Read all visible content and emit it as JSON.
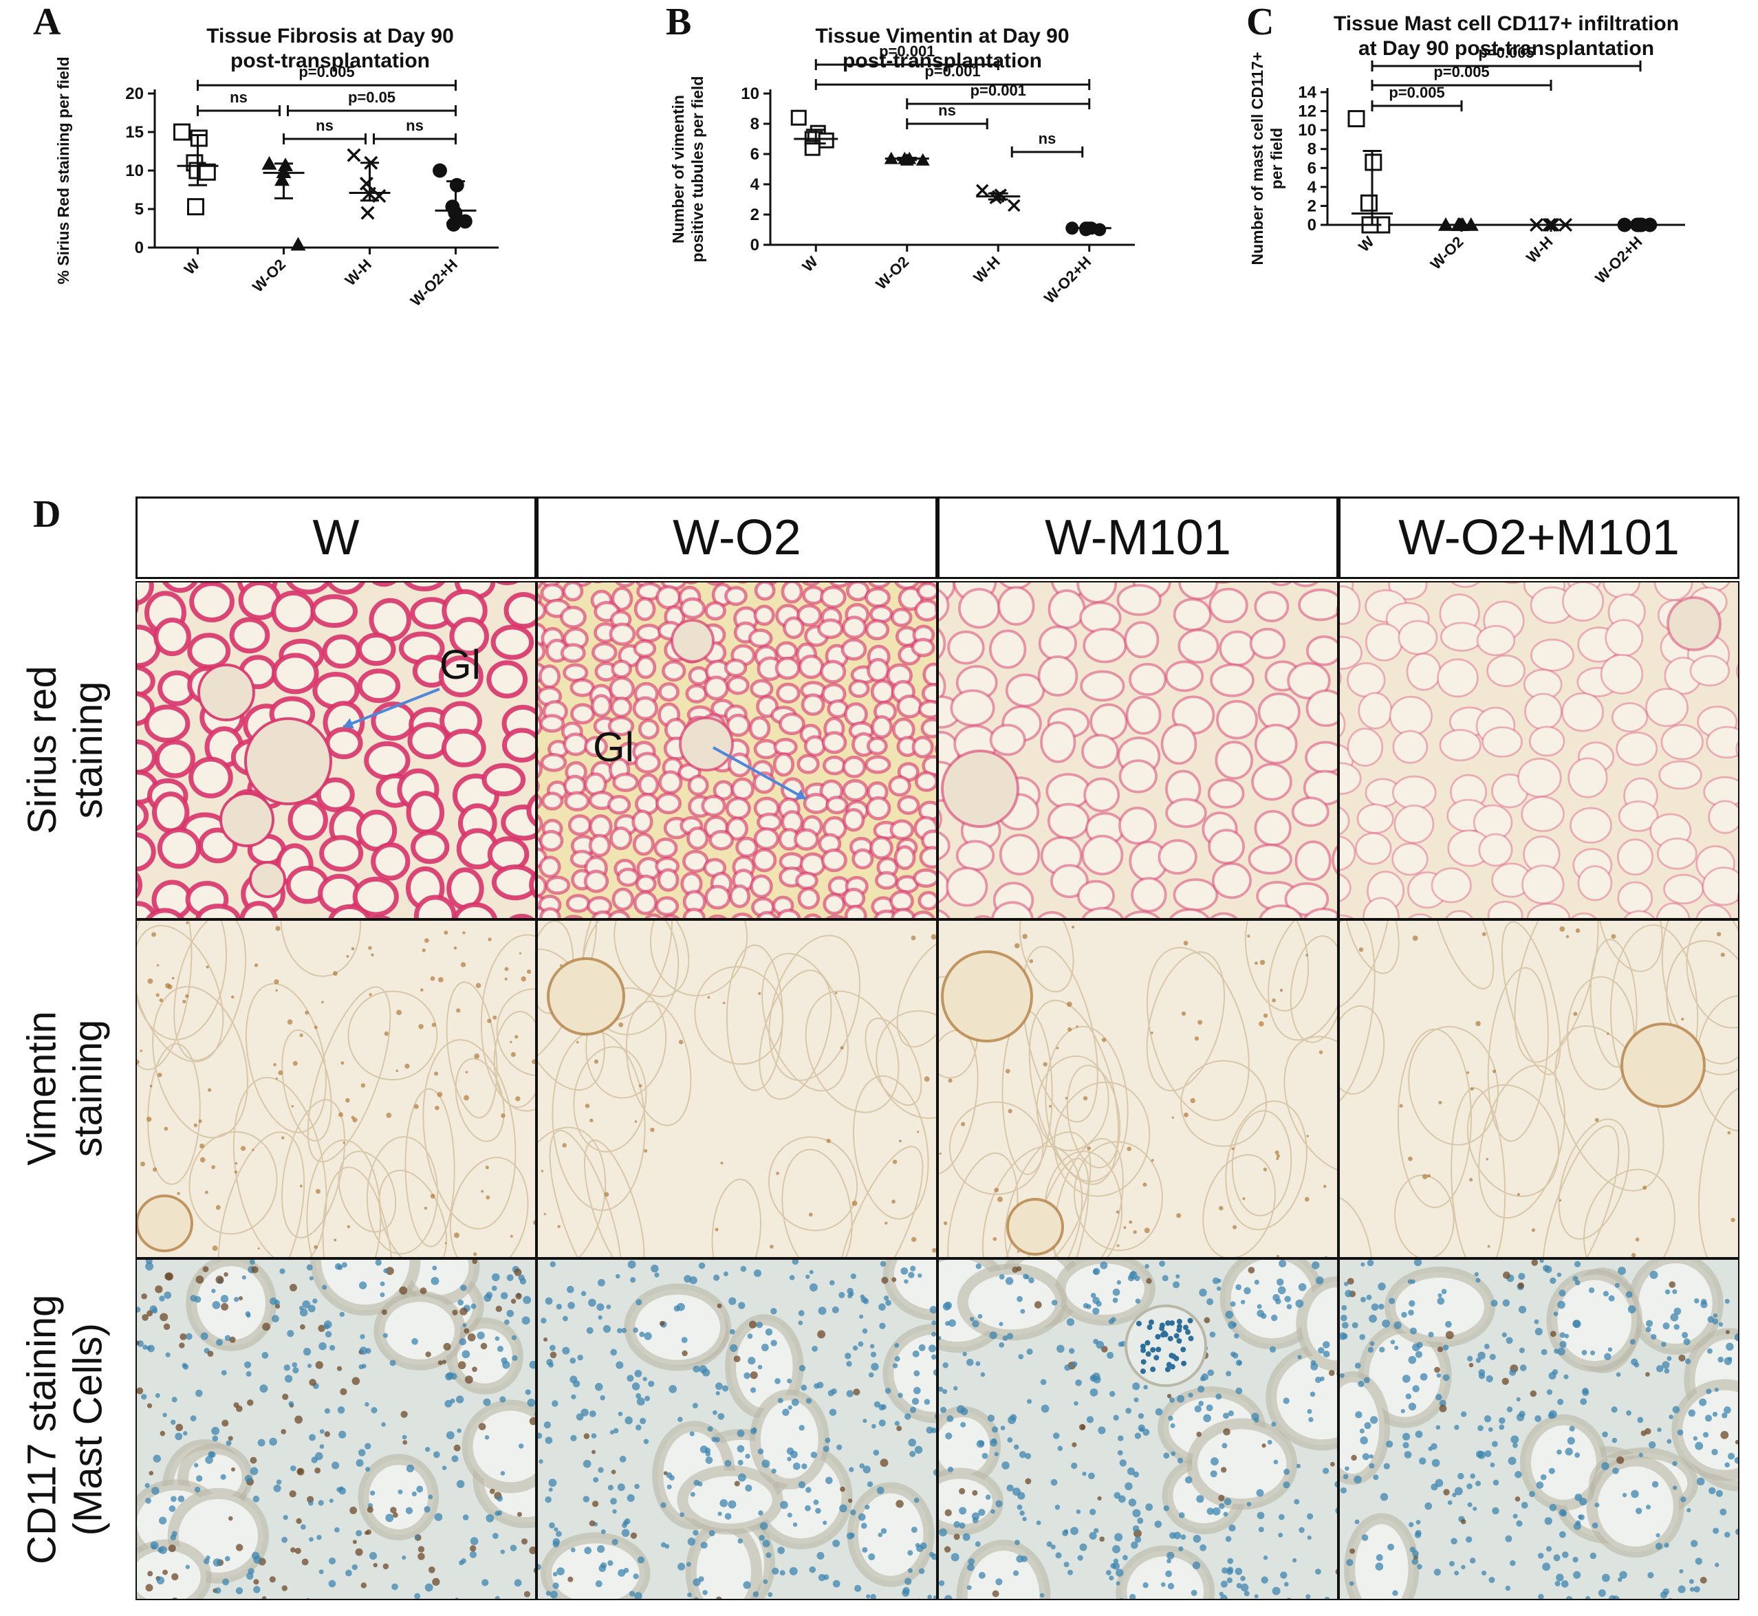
{
  "panels": {
    "a": "A",
    "b": "B",
    "c": "C",
    "d": "D"
  },
  "chart_data": [
    {
      "type": "scatter",
      "title": [
        "Tissue Fibrosis at Day 90",
        "post-transplantation"
      ],
      "xlabel": "",
      "ylabel": "% Sirius Red staining per field",
      "categories": [
        "W",
        "W-O2",
        "W-H",
        "W-O2+H"
      ],
      "ylim": [
        0,
        20
      ],
      "yticks": [
        0,
        5,
        10,
        15,
        20
      ],
      "markers": [
        "square",
        "triangle",
        "cross",
        "circle"
      ],
      "points": [
        [
          15.0,
          14.2,
          11.0,
          10.0,
          9.8,
          5.3
        ],
        [
          10.9,
          10.7,
          9.8,
          8.8,
          0.4
        ],
        [
          12.0,
          11.0,
          8.3,
          7.0,
          6.7,
          4.5
        ],
        [
          10.0,
          8.1,
          5.3,
          4.5,
          3.4,
          3.0
        ]
      ],
      "median": [
        10.6,
        9.7,
        7.1,
        4.8
      ],
      "iqr": [
        [
          8.1,
          14.6
        ],
        [
          6.4,
          10.9
        ],
        [
          6.1,
          11.0
        ],
        [
          3.2,
          8.6
        ]
      ],
      "annotations": [
        {
          "from": "W",
          "to": "W-O2+H",
          "text": "p=0.005"
        },
        {
          "from": "W",
          "to": "W-O2",
          "text": "ns"
        },
        {
          "from": "W-O2",
          "to": "W-O2+H",
          "text": "p=0.05"
        },
        {
          "from": "W-O2",
          "to": "W-H",
          "text": "ns"
        },
        {
          "from": "W-H",
          "to": "W-O2+H",
          "text": "ns"
        }
      ]
    },
    {
      "type": "scatter",
      "title": [
        "Tissue Vimentin at Day 90",
        "post-transplantation"
      ],
      "xlabel": "",
      "ylabel": [
        "Number of vimentin",
        "positive tubules per field"
      ],
      "categories": [
        "W",
        "W-O2",
        "W-H",
        "W-O2+H"
      ],
      "ylim": [
        0,
        10
      ],
      "yticks": [
        0,
        2,
        4,
        6,
        8,
        10
      ],
      "markers": [
        "square",
        "triangle",
        "cross",
        "circle"
      ],
      "points": [
        [
          8.4,
          7.4,
          7.0,
          7.0,
          6.9,
          6.4
        ],
        [
          5.7,
          5.7,
          5.6,
          5.7,
          5.6
        ],
        [
          3.6,
          3.3,
          3.2,
          3.1,
          2.6
        ],
        [
          1.1,
          1.1,
          1.0,
          1.1,
          1.0,
          1.1
        ]
      ],
      "median": [
        7.0,
        5.7,
        3.2,
        1.1
      ],
      "iqr": [
        [
          6.7,
          7.6
        ],
        [
          5.6,
          5.75
        ],
        [
          3.0,
          3.4
        ],
        [
          1.0,
          1.15
        ]
      ],
      "annotations": [
        {
          "from": "W",
          "to": "W-H",
          "text": "p=0.001"
        },
        {
          "from": "W",
          "to": "W-O2+H",
          "text": "p=0.001"
        },
        {
          "from": "W-O2",
          "to": "W-O2+H",
          "text": "p=0.001"
        },
        {
          "from": "W-O2",
          "to": "W-H",
          "text": "ns"
        },
        {
          "from": "W-H",
          "to": "W-O2+H",
          "text": "ns"
        }
      ]
    },
    {
      "type": "scatter",
      "title": [
        "Tissue Mast cell CD117+ infiltration",
        "at  Day 90 post-transplantation"
      ],
      "xlabel": "",
      "ylabel": [
        "Number of mast cell CD117+",
        "per field"
      ],
      "categories": [
        "W",
        "W-O2",
        "W-H",
        "W-O2+H"
      ],
      "ylim": [
        0,
        14
      ],
      "yticks": [
        0,
        2,
        4,
        6,
        8,
        10,
        12,
        14
      ],
      "markers": [
        "square",
        "triangle",
        "cross",
        "circle"
      ],
      "points": [
        [
          11.2,
          6.6,
          2.3,
          0,
          0,
          0
        ],
        [
          0,
          0,
          0,
          0,
          0,
          0
        ],
        [
          0,
          0,
          0,
          0,
          0
        ],
        [
          0,
          0,
          0,
          0,
          0,
          0
        ]
      ],
      "median": [
        1.2,
        0,
        0,
        0
      ],
      "iqr": [
        [
          0,
          7.8
        ],
        [
          0,
          0
        ],
        [
          0,
          0
        ],
        [
          0,
          0
        ]
      ],
      "annotations": [
        {
          "from": "W",
          "to": "W-O2+H",
          "text": "p=0.005"
        },
        {
          "from": "W",
          "to": "W-H",
          "text": "p=0.005"
        },
        {
          "from": "W",
          "to": "W-O2",
          "text": "p=0.005"
        }
      ]
    }
  ],
  "histology": {
    "columns": [
      "W",
      "W-O2",
      "W-M101",
      "W-O2+M101"
    ],
    "rows": [
      {
        "label": "Sirius red\nstaining",
        "stain": "sirius"
      },
      {
        "label": "Vimentin\nstaining",
        "stain": "vimentin"
      },
      {
        "label": "CD117 staining\n(Mast Cells)",
        "stain": "cd117"
      }
    ],
    "gl_label": "Gl",
    "stain_colors": {
      "sirius": "#d8336a",
      "vimentin": "#b07a3a",
      "cd117": "#3d86b0",
      "nucleus_brown": "#6e4a2a"
    },
    "sirius_intensity": [
      1.0,
      0.55,
      0.35,
      0.15
    ],
    "arrow_color": "#4f86d8"
  }
}
